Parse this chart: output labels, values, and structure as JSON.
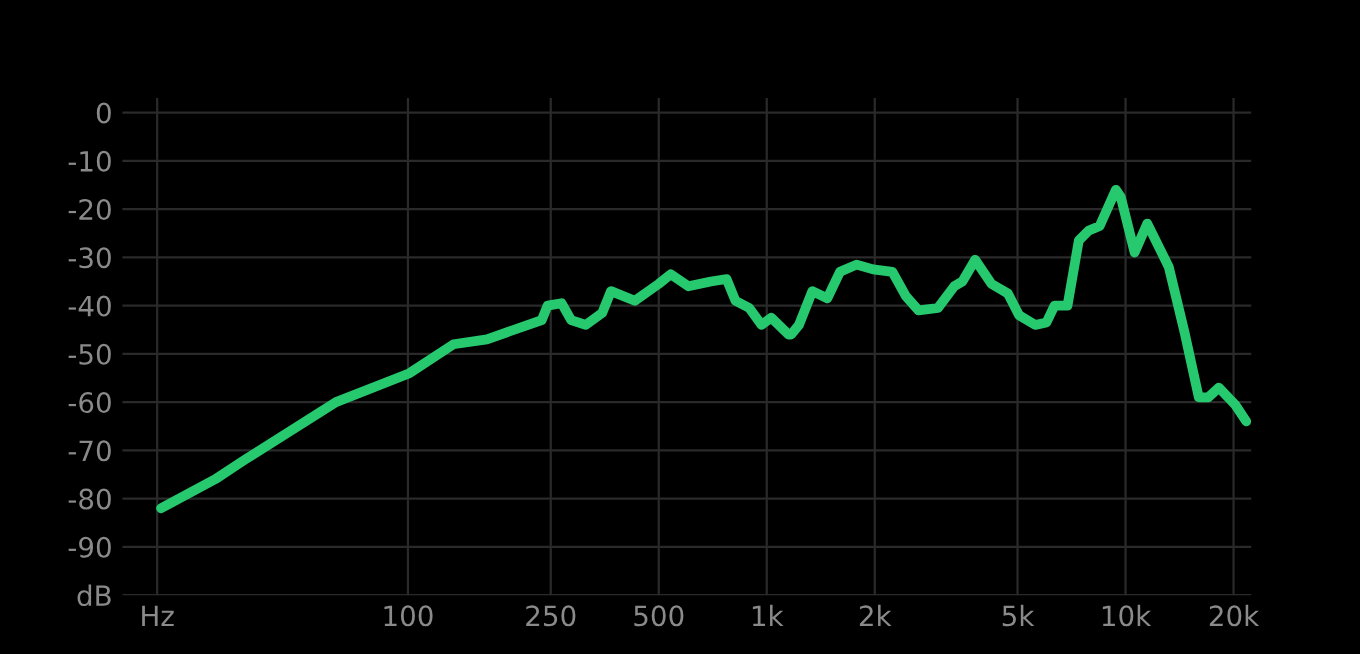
{
  "chart_data": {
    "type": "line",
    "x": [
      20.5,
      29,
      35,
      63,
      101,
      134,
      166,
      236,
      245,
      268,
      285,
      313,
      348,
      368,
      429,
      500,
      540,
      605,
      699,
      773,
      818,
      894,
      967,
      1030,
      1150,
      1170,
      1230,
      1340,
      1475,
      1600,
      1780,
      1980,
      2240,
      2440,
      2650,
      3000,
      3330,
      3510,
      3810,
      4230,
      4700,
      5050,
      5600,
      6020,
      6340,
      6890,
      7410,
      7880,
      8470,
      9400,
      9700,
      10600,
      11500,
      13200,
      14600,
      16000,
      17000,
      18200,
      20200,
      21700
    ],
    "series": [
      {
        "color": "#27c96f",
        "values": [
          -82,
          -76,
          -72,
          -60,
          -54,
          -48,
          -47,
          -43,
          -40,
          -39.5,
          -43,
          -44,
          -41.5,
          -37,
          -39,
          -35.5,
          -33.5,
          -36,
          -35,
          -34.5,
          -39,
          -40.5,
          -44,
          -42.5,
          -46,
          -46,
          -44,
          -37,
          -38.5,
          -33,
          -31.5,
          -32.5,
          -33,
          -38,
          -41,
          -40.5,
          -36,
          -35,
          -30.5,
          -35.5,
          -37.5,
          -42,
          -44,
          -43.5,
          -40,
          -40,
          -26.5,
          -24.5,
          -23.5,
          -16,
          -17.5,
          -29,
          -23,
          -32,
          -45.5,
          -59,
          -59,
          -57,
          -60.5,
          -64
        ]
      }
    ],
    "log": "x",
    "xlim": [
      16,
      22400
    ],
    "xticks": [
      {
        "value": 20,
        "label": "Hz"
      },
      100,
      250,
      500,
      {
        "value": 1000,
        "label": "1k"
      },
      {
        "value": 2000,
        "label": "2k"
      },
      {
        "value": 5000,
        "label": "5k"
      },
      {
        "value": 10000,
        "label": "10k"
      },
      {
        "value": 20000,
        "label": "20k"
      }
    ],
    "ylim": [
      -100,
      3
    ],
    "yticks": [
      0,
      -10,
      -20,
      -30,
      -40,
      -50,
      -60,
      -70,
      -80,
      -90,
      {
        "value": -100,
        "label": "dB"
      }
    ],
    "grid": true,
    "marker": "none",
    "line_style": "solid"
  }
}
